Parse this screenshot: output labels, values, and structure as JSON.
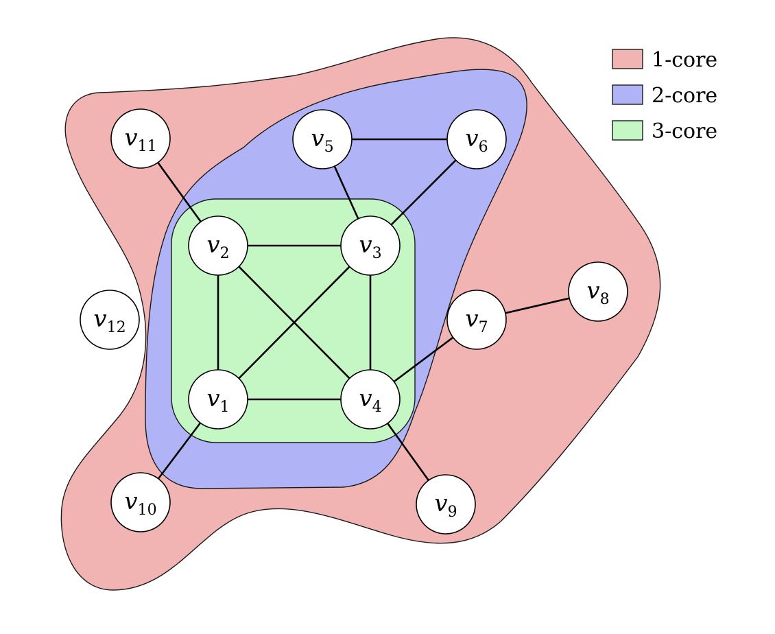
{
  "legend": [
    {
      "label": "1-core",
      "color": "#f2b3b3"
    },
    {
      "label": "2-core",
      "color": "#b0b3f5"
    },
    {
      "label": "3-core",
      "color": "#c4f7c3"
    }
  ],
  "nodes": [
    {
      "id": "v1",
      "sub": "1"
    },
    {
      "id": "v2",
      "sub": "2"
    },
    {
      "id": "v3",
      "sub": "3"
    },
    {
      "id": "v4",
      "sub": "4"
    },
    {
      "id": "v5",
      "sub": "5"
    },
    {
      "id": "v6",
      "sub": "6"
    },
    {
      "id": "v7",
      "sub": "7"
    },
    {
      "id": "v8",
      "sub": "8"
    },
    {
      "id": "v9",
      "sub": "9"
    },
    {
      "id": "v10",
      "sub": "10"
    },
    {
      "id": "v11",
      "sub": "11"
    },
    {
      "id": "v12",
      "sub": "12"
    }
  ],
  "edges": [
    [
      "v1",
      "v2"
    ],
    [
      "v1",
      "v3"
    ],
    [
      "v1",
      "v4"
    ],
    [
      "v2",
      "v3"
    ],
    [
      "v2",
      "v4"
    ],
    [
      "v3",
      "v4"
    ],
    [
      "v3",
      "v5"
    ],
    [
      "v3",
      "v6"
    ],
    [
      "v5",
      "v6"
    ],
    [
      "v4",
      "v7"
    ],
    [
      "v7",
      "v8"
    ],
    [
      "v4",
      "v9"
    ],
    [
      "v1",
      "v10"
    ],
    [
      "v2",
      "v11"
    ]
  ]
}
